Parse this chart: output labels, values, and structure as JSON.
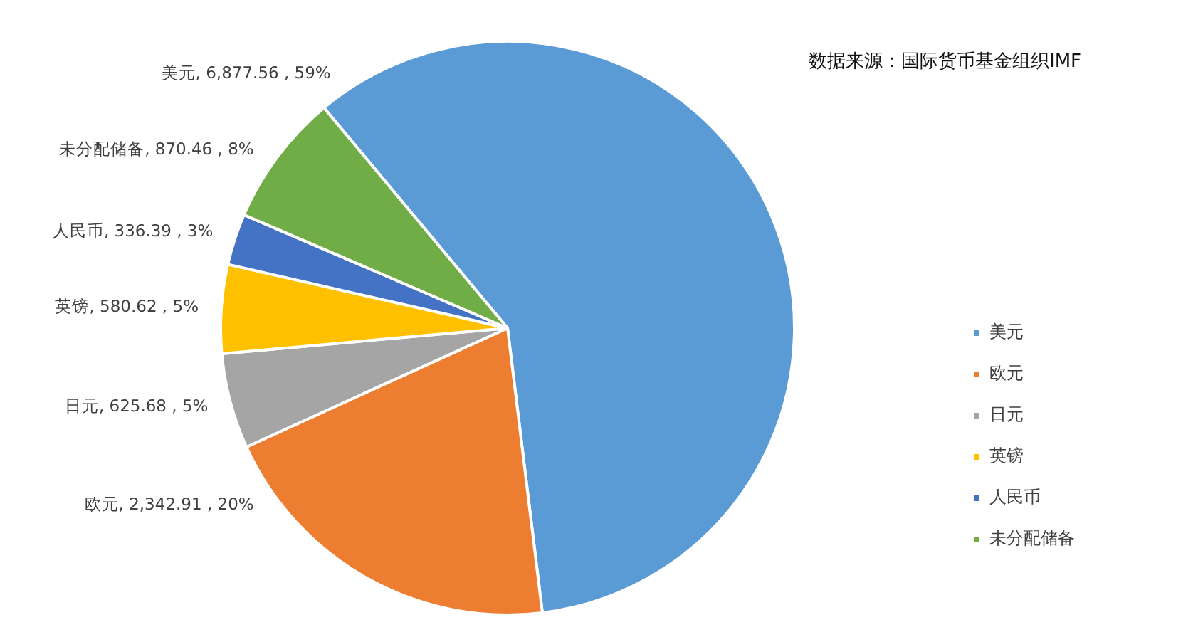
{
  "chart_data": {
    "type": "pie",
    "categories": [
      "美元",
      "欧元",
      "日元",
      "英镑",
      "人民币",
      "未分配储备"
    ],
    "values": [
      6877.56,
      2342.91,
      625.68,
      580.62,
      336.39,
      870.46
    ],
    "colors": [
      "#5b9bd5",
      "#ed7d31",
      "#a5a5a5",
      "#ffc000",
      "#4472c4",
      "#70ad47"
    ],
    "value_labels": [
      "美元, 6,877.56 , 59%",
      "欧元, 2,342.91 , 20%",
      "日元, 625.68 , 5%",
      "英镑, 580.62 , 5%",
      "人民币, 336.39 , 3%",
      "未分配储备, 870.46 , 8%"
    ],
    "legend": "right",
    "annotations": [
      "数据来源：国际货币基金组织IMF"
    ]
  }
}
